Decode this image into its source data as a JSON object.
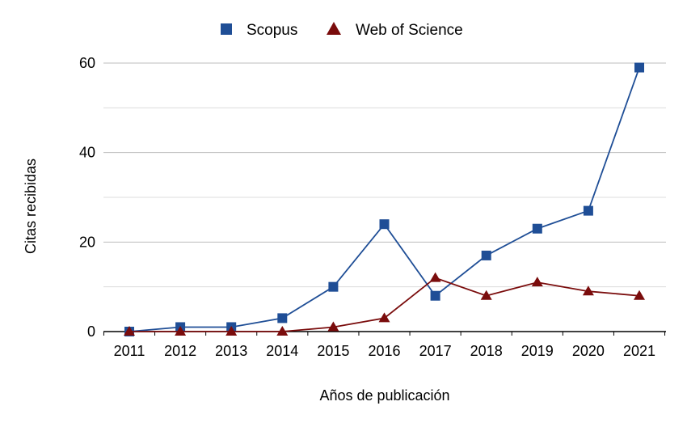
{
  "chart_data": {
    "type": "line",
    "title": "",
    "xlabel": "Años de publicación",
    "ylabel": "Citas recibidas",
    "categories": [
      "2011",
      "2012",
      "2013",
      "2014",
      "2015",
      "2016",
      "2017",
      "2018",
      "2019",
      "2020",
      "2021"
    ],
    "series": [
      {
        "name": "Scopus",
        "color": "#1f4e96",
        "marker": "square",
        "values": [
          0,
          1,
          1,
          3,
          10,
          24,
          8,
          17,
          23,
          27,
          59
        ]
      },
      {
        "name": "Web of Science",
        "color": "#7a0c0c",
        "marker": "triangle",
        "values": [
          0,
          0,
          0,
          0,
          1,
          3,
          12,
          8,
          11,
          9,
          8
        ]
      }
    ],
    "ylim": [
      0,
      60
    ],
    "yticks": [
      0,
      20,
      40,
      60
    ],
    "grid": true,
    "legend_position": "top"
  }
}
